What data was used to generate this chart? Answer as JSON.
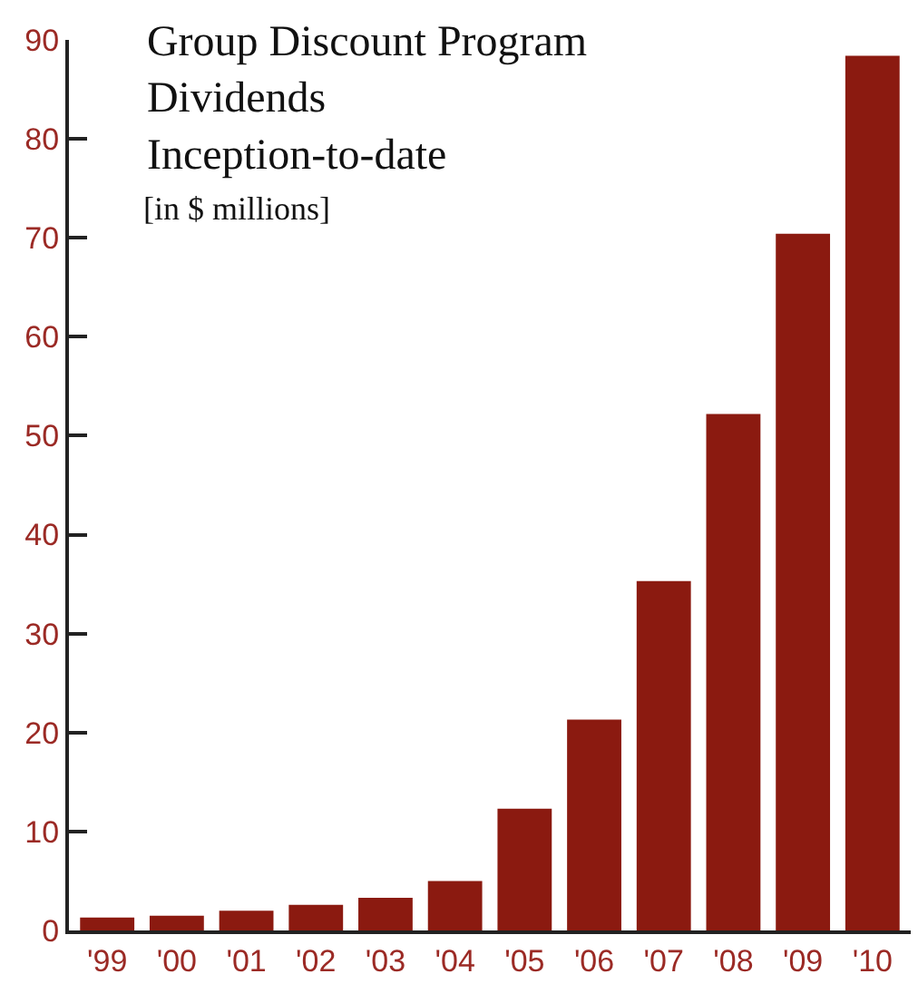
{
  "chart_data": {
    "type": "bar",
    "title": "Group Discount Program\nDividends\nInception-to-date",
    "subtitle": "[in $ millions]",
    "categories": [
      "'99",
      "'00",
      "'01",
      "'02",
      "'03",
      "'04",
      "'05",
      "'06",
      "'07",
      "'08",
      "'09",
      "'10"
    ],
    "values": [
      1.3,
      1.5,
      2.0,
      2.6,
      3.3,
      5.0,
      12.3,
      21.3,
      35.3,
      52.2,
      70.4,
      88.4
    ],
    "color": "#8b1a10",
    "ylim": [
      0,
      90
    ],
    "yticks": [
      0,
      10,
      20,
      30,
      40,
      50,
      60,
      70,
      80,
      90
    ],
    "grid": false,
    "legend": false
  }
}
